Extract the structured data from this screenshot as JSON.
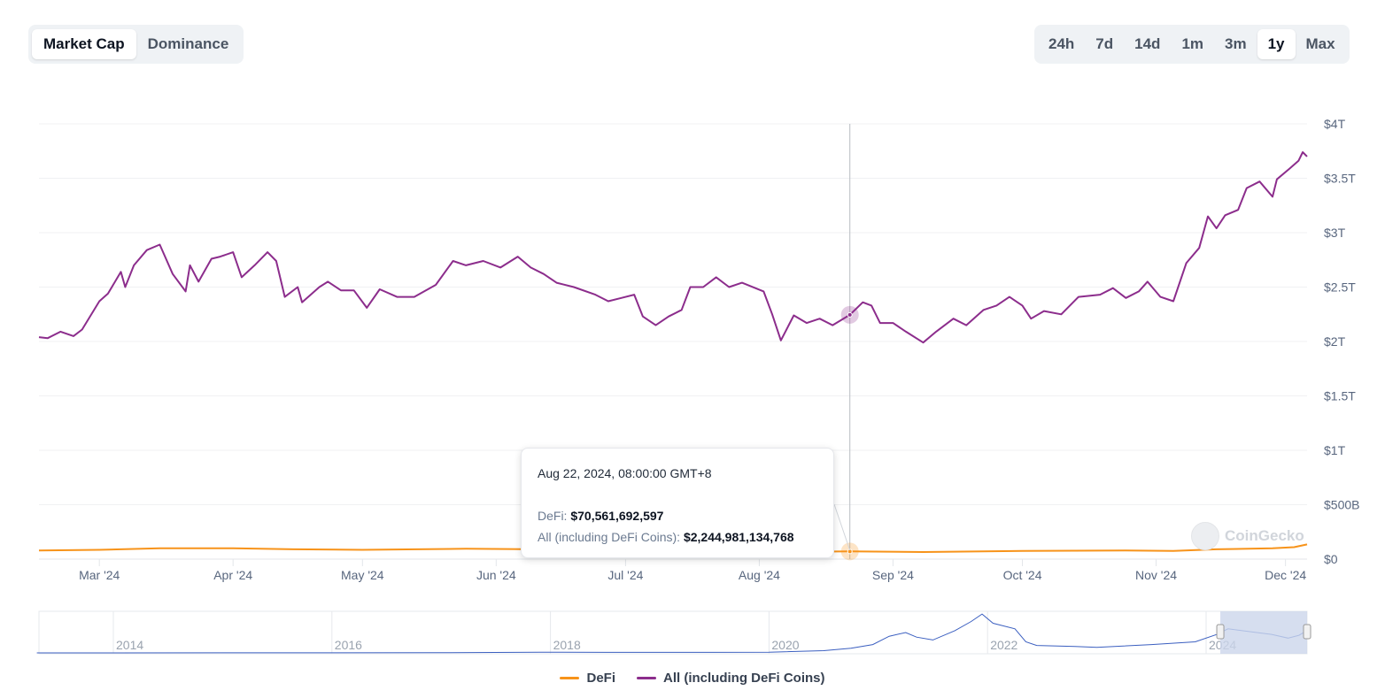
{
  "metric_tabs": [
    {
      "label": "Market Cap",
      "selected": true
    },
    {
      "label": "Dominance",
      "selected": false
    }
  ],
  "range_tabs": [
    {
      "label": "24h",
      "selected": false
    },
    {
      "label": "7d",
      "selected": false
    },
    {
      "label": "14d",
      "selected": false
    },
    {
      "label": "1m",
      "selected": false
    },
    {
      "label": "3m",
      "selected": false
    },
    {
      "label": "1y",
      "selected": true
    },
    {
      "label": "Max",
      "selected": false
    }
  ],
  "watermark": "CoinGecko",
  "tooltip": {
    "date": "Aug 22, 2024, 08:00:00 GMT+8",
    "rows": [
      {
        "label": "DeFi:",
        "value": "$70,561,692,597"
      },
      {
        "label": "All (including DeFi Coins):",
        "value": "$2,244,981,134,768"
      }
    ],
    "hover_date": "2024-08-22"
  },
  "legend": [
    {
      "label": "DeFi",
      "color": "#f7931a"
    },
    {
      "label": "All (including DeFi Coins)",
      "color": "#8c2d8c"
    }
  ],
  "chart_data": {
    "type": "line",
    "title": "",
    "xlabel": "",
    "ylabel": "",
    "xlim": [
      "2024-02-16",
      "2024-12-06"
    ],
    "ylim": [
      0,
      4
    ],
    "y_unit": "trillion USD",
    "grid": true,
    "legend_position": "bottom",
    "y_ticks": [
      {
        "value": 0,
        "label": "$0"
      },
      {
        "value": 0.5,
        "label": "$500B"
      },
      {
        "value": 1,
        "label": "$1T"
      },
      {
        "value": 1.5,
        "label": "$1.5T"
      },
      {
        "value": 2,
        "label": "$2T"
      },
      {
        "value": 2.5,
        "label": "$2.5T"
      },
      {
        "value": 3,
        "label": "$3T"
      },
      {
        "value": 3.5,
        "label": "$3.5T"
      },
      {
        "value": 4,
        "label": "$4T"
      }
    ],
    "x_ticks": [
      {
        "date": "2024-03-01",
        "label": "Mar '24"
      },
      {
        "date": "2024-04-01",
        "label": "Apr '24"
      },
      {
        "date": "2024-05-01",
        "label": "May '24"
      },
      {
        "date": "2024-06-01",
        "label": "Jun '24"
      },
      {
        "date": "2024-07-01",
        "label": "Jul '24"
      },
      {
        "date": "2024-08-01",
        "label": "Aug '24"
      },
      {
        "date": "2024-09-01",
        "label": "Sep '24"
      },
      {
        "date": "2024-10-01",
        "label": "Oct '24"
      },
      {
        "date": "2024-11-01",
        "label": "Nov '24"
      },
      {
        "date": "2024-12-01",
        "label": "Dec '24"
      }
    ],
    "series": [
      {
        "name": "DeFi",
        "color": "#f7931a",
        "points": [
          [
            "2024-02-16",
            0.08
          ],
          [
            "2024-03-01",
            0.085
          ],
          [
            "2024-03-15",
            0.1
          ],
          [
            "2024-04-01",
            0.1
          ],
          [
            "2024-04-15",
            0.09
          ],
          [
            "2024-05-01",
            0.085
          ],
          [
            "2024-05-25",
            0.095
          ],
          [
            "2024-06-10",
            0.09
          ],
          [
            "2024-07-05",
            0.08
          ],
          [
            "2024-08-01",
            0.08
          ],
          [
            "2024-08-05",
            0.065
          ],
          [
            "2024-08-22",
            0.0706
          ],
          [
            "2024-09-08",
            0.065
          ],
          [
            "2024-10-01",
            0.075
          ],
          [
            "2024-10-25",
            0.08
          ],
          [
            "2024-11-05",
            0.075
          ],
          [
            "2024-11-15",
            0.09
          ],
          [
            "2024-11-28",
            0.1
          ],
          [
            "2024-12-03",
            0.11
          ],
          [
            "2024-12-06",
            0.135
          ]
        ]
      },
      {
        "name": "All (including DeFi Coins)",
        "color": "#8c2d8c",
        "points": [
          [
            "2024-02-16",
            2.04
          ],
          [
            "2024-02-18",
            2.03
          ],
          [
            "2024-02-21",
            2.09
          ],
          [
            "2024-02-24",
            2.05
          ],
          [
            "2024-02-26",
            2.11
          ],
          [
            "2024-03-01",
            2.37
          ],
          [
            "2024-03-03",
            2.44
          ],
          [
            "2024-03-06",
            2.64
          ],
          [
            "2024-03-07",
            2.5
          ],
          [
            "2024-03-09",
            2.7
          ],
          [
            "2024-03-12",
            2.84
          ],
          [
            "2024-03-15",
            2.89
          ],
          [
            "2024-03-18",
            2.62
          ],
          [
            "2024-03-21",
            2.46
          ],
          [
            "2024-03-22",
            2.7
          ],
          [
            "2024-03-24",
            2.55
          ],
          [
            "2024-03-27",
            2.76
          ],
          [
            "2024-03-29",
            2.78
          ],
          [
            "2024-04-01",
            2.82
          ],
          [
            "2024-04-03",
            2.59
          ],
          [
            "2024-04-06",
            2.7
          ],
          [
            "2024-04-09",
            2.82
          ],
          [
            "2024-04-11",
            2.74
          ],
          [
            "2024-04-13",
            2.41
          ],
          [
            "2024-04-16",
            2.5
          ],
          [
            "2024-04-17",
            2.36
          ],
          [
            "2024-04-21",
            2.5
          ],
          [
            "2024-04-23",
            2.55
          ],
          [
            "2024-04-26",
            2.47
          ],
          [
            "2024-04-29",
            2.47
          ],
          [
            "2024-05-02",
            2.31
          ],
          [
            "2024-05-05",
            2.48
          ],
          [
            "2024-05-09",
            2.41
          ],
          [
            "2024-05-13",
            2.41
          ],
          [
            "2024-05-18",
            2.52
          ],
          [
            "2024-05-22",
            2.74
          ],
          [
            "2024-05-25",
            2.7
          ],
          [
            "2024-05-29",
            2.74
          ],
          [
            "2024-06-02",
            2.68
          ],
          [
            "2024-06-06",
            2.78
          ],
          [
            "2024-06-09",
            2.68
          ],
          [
            "2024-06-12",
            2.62
          ],
          [
            "2024-06-15",
            2.54
          ],
          [
            "2024-06-19",
            2.5
          ],
          [
            "2024-06-24",
            2.43
          ],
          [
            "2024-06-27",
            2.37
          ],
          [
            "2024-06-30",
            2.4
          ],
          [
            "2024-07-03",
            2.43
          ],
          [
            "2024-07-05",
            2.23
          ],
          [
            "2024-07-08",
            2.15
          ],
          [
            "2024-07-11",
            2.23
          ],
          [
            "2024-07-14",
            2.29
          ],
          [
            "2024-07-16",
            2.5
          ],
          [
            "2024-07-19",
            2.5
          ],
          [
            "2024-07-22",
            2.59
          ],
          [
            "2024-07-25",
            2.5
          ],
          [
            "2024-07-28",
            2.54
          ],
          [
            "2024-08-02",
            2.46
          ],
          [
            "2024-08-04",
            2.25
          ],
          [
            "2024-08-06",
            2.01
          ],
          [
            "2024-08-09",
            2.24
          ],
          [
            "2024-08-12",
            2.17
          ],
          [
            "2024-08-15",
            2.21
          ],
          [
            "2024-08-18",
            2.15
          ],
          [
            "2024-08-22",
            2.245
          ],
          [
            "2024-08-25",
            2.36
          ],
          [
            "2024-08-27",
            2.33
          ],
          [
            "2024-08-29",
            2.17
          ],
          [
            "2024-09-01",
            2.17
          ],
          [
            "2024-09-04",
            2.09
          ],
          [
            "2024-09-08",
            1.99
          ],
          [
            "2024-09-11",
            2.09
          ],
          [
            "2024-09-15",
            2.21
          ],
          [
            "2024-09-18",
            2.15
          ],
          [
            "2024-09-22",
            2.29
          ],
          [
            "2024-09-25",
            2.33
          ],
          [
            "2024-09-28",
            2.41
          ],
          [
            "2024-10-01",
            2.33
          ],
          [
            "2024-10-03",
            2.21
          ],
          [
            "2024-10-06",
            2.28
          ],
          [
            "2024-10-10",
            2.25
          ],
          [
            "2024-10-14",
            2.41
          ],
          [
            "2024-10-19",
            2.43
          ],
          [
            "2024-10-22",
            2.49
          ],
          [
            "2024-10-25",
            2.4
          ],
          [
            "2024-10-28",
            2.46
          ],
          [
            "2024-10-30",
            2.55
          ],
          [
            "2024-11-02",
            2.41
          ],
          [
            "2024-11-05",
            2.37
          ],
          [
            "2024-11-08",
            2.72
          ],
          [
            "2024-11-11",
            2.86
          ],
          [
            "2024-11-13",
            3.15
          ],
          [
            "2024-11-15",
            3.04
          ],
          [
            "2024-11-17",
            3.16
          ],
          [
            "2024-11-20",
            3.21
          ],
          [
            "2024-11-22",
            3.41
          ],
          [
            "2024-11-25",
            3.47
          ],
          [
            "2024-11-28",
            3.33
          ],
          [
            "2024-11-29",
            3.49
          ],
          [
            "2024-12-02",
            3.59
          ],
          [
            "2024-12-04",
            3.66
          ],
          [
            "2024-12-05",
            3.74
          ],
          [
            "2024-12-06",
            3.7
          ]
        ]
      }
    ],
    "navigator": {
      "color": "#3b5fc0",
      "selection": [
        "2024-02-16",
        "2024-12-06"
      ],
      "year_labels": [
        "2014",
        "2016",
        "2018",
        "2020",
        "2022",
        "2024"
      ],
      "points": [
        [
          2013.3,
          0
        ],
        [
          2017.0,
          1
        ],
        [
          2017.9,
          4
        ],
        [
          2018.5,
          3
        ],
        [
          2019.5,
          3
        ],
        [
          2020.0,
          4
        ],
        [
          2020.5,
          12
        ],
        [
          2020.75,
          25
        ],
        [
          2020.95,
          45
        ],
        [
          2021.1,
          90
        ],
        [
          2021.25,
          110
        ],
        [
          2021.35,
          85
        ],
        [
          2021.5,
          70
        ],
        [
          2021.7,
          120
        ],
        [
          2021.85,
          170
        ],
        [
          2021.95,
          210
        ],
        [
          2022.05,
          160
        ],
        [
          2022.25,
          130
        ],
        [
          2022.35,
          60
        ],
        [
          2022.45,
          40
        ],
        [
          2022.8,
          35
        ],
        [
          2023.0,
          30
        ],
        [
          2023.5,
          45
        ],
        [
          2023.9,
          60
        ],
        [
          2024.1,
          100
        ],
        [
          2024.2,
          130
        ],
        [
          2024.4,
          115
        ],
        [
          2024.6,
          100
        ],
        [
          2024.75,
          80
        ],
        [
          2024.85,
          95
        ],
        [
          2024.95,
          130
        ]
      ]
    }
  }
}
